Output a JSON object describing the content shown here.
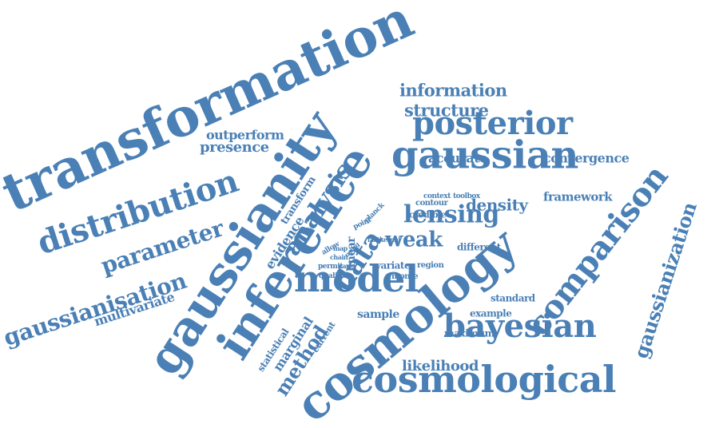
{
  "colors": {
    "word": "#4a80b5",
    "background": "#ffffff"
  },
  "words": [
    {
      "text": "transformation"
    },
    {
      "text": "distribution"
    },
    {
      "text": "gaussianity"
    },
    {
      "text": "inference"
    },
    {
      "text": "analysis"
    },
    {
      "text": "information"
    },
    {
      "text": "structure"
    },
    {
      "text": "posterior"
    },
    {
      "text": "gaussian"
    },
    {
      "text": "accurate"
    },
    {
      "text": "convergence"
    },
    {
      "text": "framework"
    },
    {
      "text": "density"
    },
    {
      "text": "lensing"
    },
    {
      "text": "outperform"
    },
    {
      "text": "presence"
    },
    {
      "text": "parameter"
    },
    {
      "text": "gaussianisation"
    },
    {
      "text": "multivariate"
    },
    {
      "text": "gaussianization"
    },
    {
      "text": "comparison"
    },
    {
      "text": "cosmology"
    },
    {
      "text": "cosmological"
    },
    {
      "text": "bayesian"
    },
    {
      "text": "likelihood"
    },
    {
      "text": "model"
    },
    {
      "text": "data"
    },
    {
      "text": "weak"
    },
    {
      "text": "method"
    },
    {
      "text": "marginal"
    },
    {
      "text": "evidence"
    },
    {
      "text": "transform"
    },
    {
      "text": "statistical"
    },
    {
      "text": "current"
    },
    {
      "text": "sample"
    },
    {
      "text": "example"
    },
    {
      "text": "maximum"
    },
    {
      "text": "standard"
    },
    {
      "text": "different"
    },
    {
      "text": "region"
    },
    {
      "text": "monte"
    },
    {
      "text": "variate"
    },
    {
      "text": "permit"
    },
    {
      "text": "quality"
    },
    {
      "text": "credible"
    },
    {
      "text": "contour"
    },
    {
      "text": "context"
    },
    {
      "text": "toolbox"
    },
    {
      "text": "fastkernel"
    },
    {
      "text": "planck"
    },
    {
      "text": "point"
    },
    {
      "text": "allow"
    },
    {
      "text": "chain"
    },
    {
      "text": "carlo"
    },
    {
      "text": "map"
    },
    {
      "text": "linear"
    },
    {
      "text": "using"
    }
  ]
}
